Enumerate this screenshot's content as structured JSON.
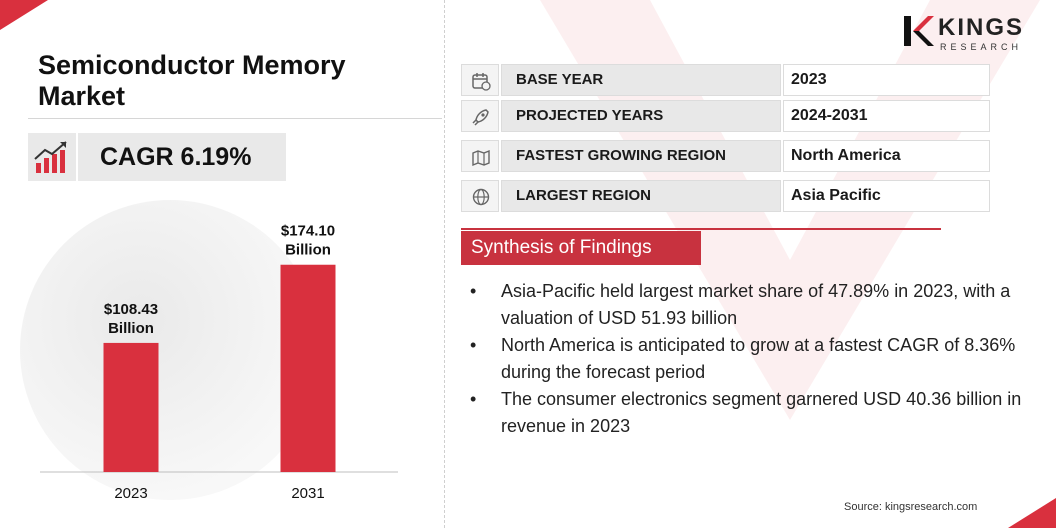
{
  "title": "Semiconductor Memory Market",
  "cagr": "CAGR 6.19%",
  "brand": {
    "name": "KINGS",
    "sub": "RESEARCH",
    "accent": "#d9303e"
  },
  "info_rows": [
    {
      "icon": "calendar-icon",
      "label": "BASE YEAR",
      "value": "2023"
    },
    {
      "icon": "rocket-icon",
      "label": "PROJECTED YEARS",
      "value": "2024-2031"
    },
    {
      "icon": "map-icon",
      "label": "FASTEST GROWING REGION",
      "value": "North America"
    },
    {
      "icon": "globe-icon",
      "label": "LARGEST REGION",
      "value": "Asia Pacific"
    }
  ],
  "synthesis": {
    "heading": "Synthesis of Findings",
    "items": [
      "Asia-Pacific held largest market share of 47.89% in 2023, with a valuation of USD 51.93 billion",
      "North America is anticipated to grow at a fastest CAGR of 8.36% during the forecast period",
      "The consumer electronics segment garnered USD 40.36 billion in revenue in 2023"
    ]
  },
  "source": "Source: kingsresearch.com",
  "chart_data": {
    "type": "bar",
    "categories": [
      "2023",
      "2031"
    ],
    "values": [
      108.43,
      174.1
    ],
    "data_labels": [
      [
        "$108.43",
        "Billion"
      ],
      [
        "$174.10",
        "Billion"
      ]
    ],
    "title": "",
    "xlabel": "",
    "ylabel": "",
    "ylim": [
      0,
      210
    ],
    "grid": false,
    "bar_color": "#d9303e"
  }
}
